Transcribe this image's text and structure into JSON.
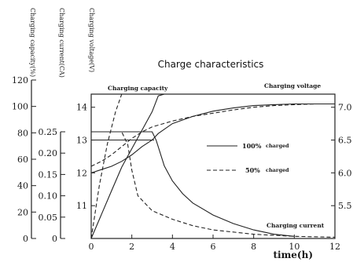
{
  "chart_data": {
    "type": "line",
    "title": "Charge characteristics",
    "xlabel": "time(h)",
    "x_ticks": [
      "0",
      "2",
      "4",
      "6",
      "8",
      "10",
      "12"
    ],
    "xlim": [
      0,
      12
    ],
    "axes": {
      "capacity": {
        "label": "Charging capacity(%)",
        "ticks": [
          "0",
          "20",
          "40",
          "60",
          "80",
          "100",
          "120"
        ],
        "range": [
          0,
          120
        ]
      },
      "current": {
        "label": "Charging current(CA)",
        "ticks": [
          "0",
          "0.05",
          "0.10",
          "0.15",
          "0.20",
          "0.25"
        ],
        "range": [
          0,
          0.25
        ]
      },
      "voltage_left": {
        "label": "Charging voltage(V)",
        "ticks": [
          "11",
          "12",
          "13",
          "14"
        ],
        "range": [
          10,
          14.4
        ]
      },
      "voltage_right": {
        "ticks": [
          "5.5",
          "6.0",
          "6.5",
          "7.0"
        ],
        "range": [
          5.0,
          7.2
        ]
      }
    },
    "annotations": {
      "capacity": "Charging capacity",
      "voltage": "Charging voltage",
      "current": "Charging current"
    },
    "legend": {
      "solid_main": "100%",
      "solid_sub": "charged",
      "dashed_main": "50%",
      "dashed_sub": "charged"
    },
    "series": [
      {
        "group": "capacity",
        "style": "solid",
        "x": [
          0,
          0.5,
          1,
          1.5,
          2,
          2.5,
          3,
          3.3,
          3.6,
          12
        ],
        "values": [
          0,
          18,
          36,
          54,
          68,
          82,
          96,
          108,
          120,
          120
        ]
      },
      {
        "group": "capacity",
        "style": "dashed",
        "x": [
          0,
          0.4,
          0.8,
          1.2,
          1.5,
          1.8,
          2.0,
          12
        ],
        "values": [
          0,
          40,
          72,
          96,
          110,
          118,
          120,
          120
        ]
      },
      {
        "group": "current",
        "style": "solid",
        "x": [
          0,
          3.0,
          3.2,
          3.6,
          4,
          4.5,
          5,
          6,
          7,
          8,
          9,
          10
        ],
        "values": [
          0.25,
          0.25,
          0.23,
          0.17,
          0.135,
          0.105,
          0.083,
          0.055,
          0.035,
          0.02,
          0.01,
          0.005
        ]
      },
      {
        "group": "current",
        "style": "dashed",
        "x": [
          0,
          1.5,
          1.8,
          2.0,
          2.3,
          3,
          4,
          5,
          6,
          8,
          10,
          12
        ],
        "values": [
          0.25,
          0.25,
          0.22,
          0.16,
          0.1,
          0.065,
          0.045,
          0.03,
          0.02,
          0.01,
          0.005,
          0.003
        ]
      },
      {
        "group": "voltage",
        "style": "solid",
        "x": [
          0,
          0.5,
          1,
          1.5,
          2,
          2.5,
          3,
          3.3,
          4,
          5,
          6,
          7,
          8,
          9,
          10,
          11,
          12
        ],
        "values": [
          12.0,
          12.1,
          12.2,
          12.35,
          12.55,
          12.8,
          13.0,
          13.2,
          13.5,
          13.72,
          13.88,
          13.98,
          14.05,
          14.08,
          14.1,
          14.1,
          14.1
        ]
      },
      {
        "group": "voltage",
        "style": "dashed",
        "x": [
          0,
          0.5,
          1,
          1.5,
          2,
          2.5,
          3,
          4,
          5,
          6,
          7,
          8,
          9,
          10,
          11,
          12
        ],
        "values": [
          12.2,
          12.35,
          12.55,
          12.8,
          13.05,
          13.25,
          13.4,
          13.58,
          13.72,
          13.82,
          13.92,
          14.0,
          14.05,
          14.08,
          14.1,
          14.1
        ]
      }
    ]
  }
}
